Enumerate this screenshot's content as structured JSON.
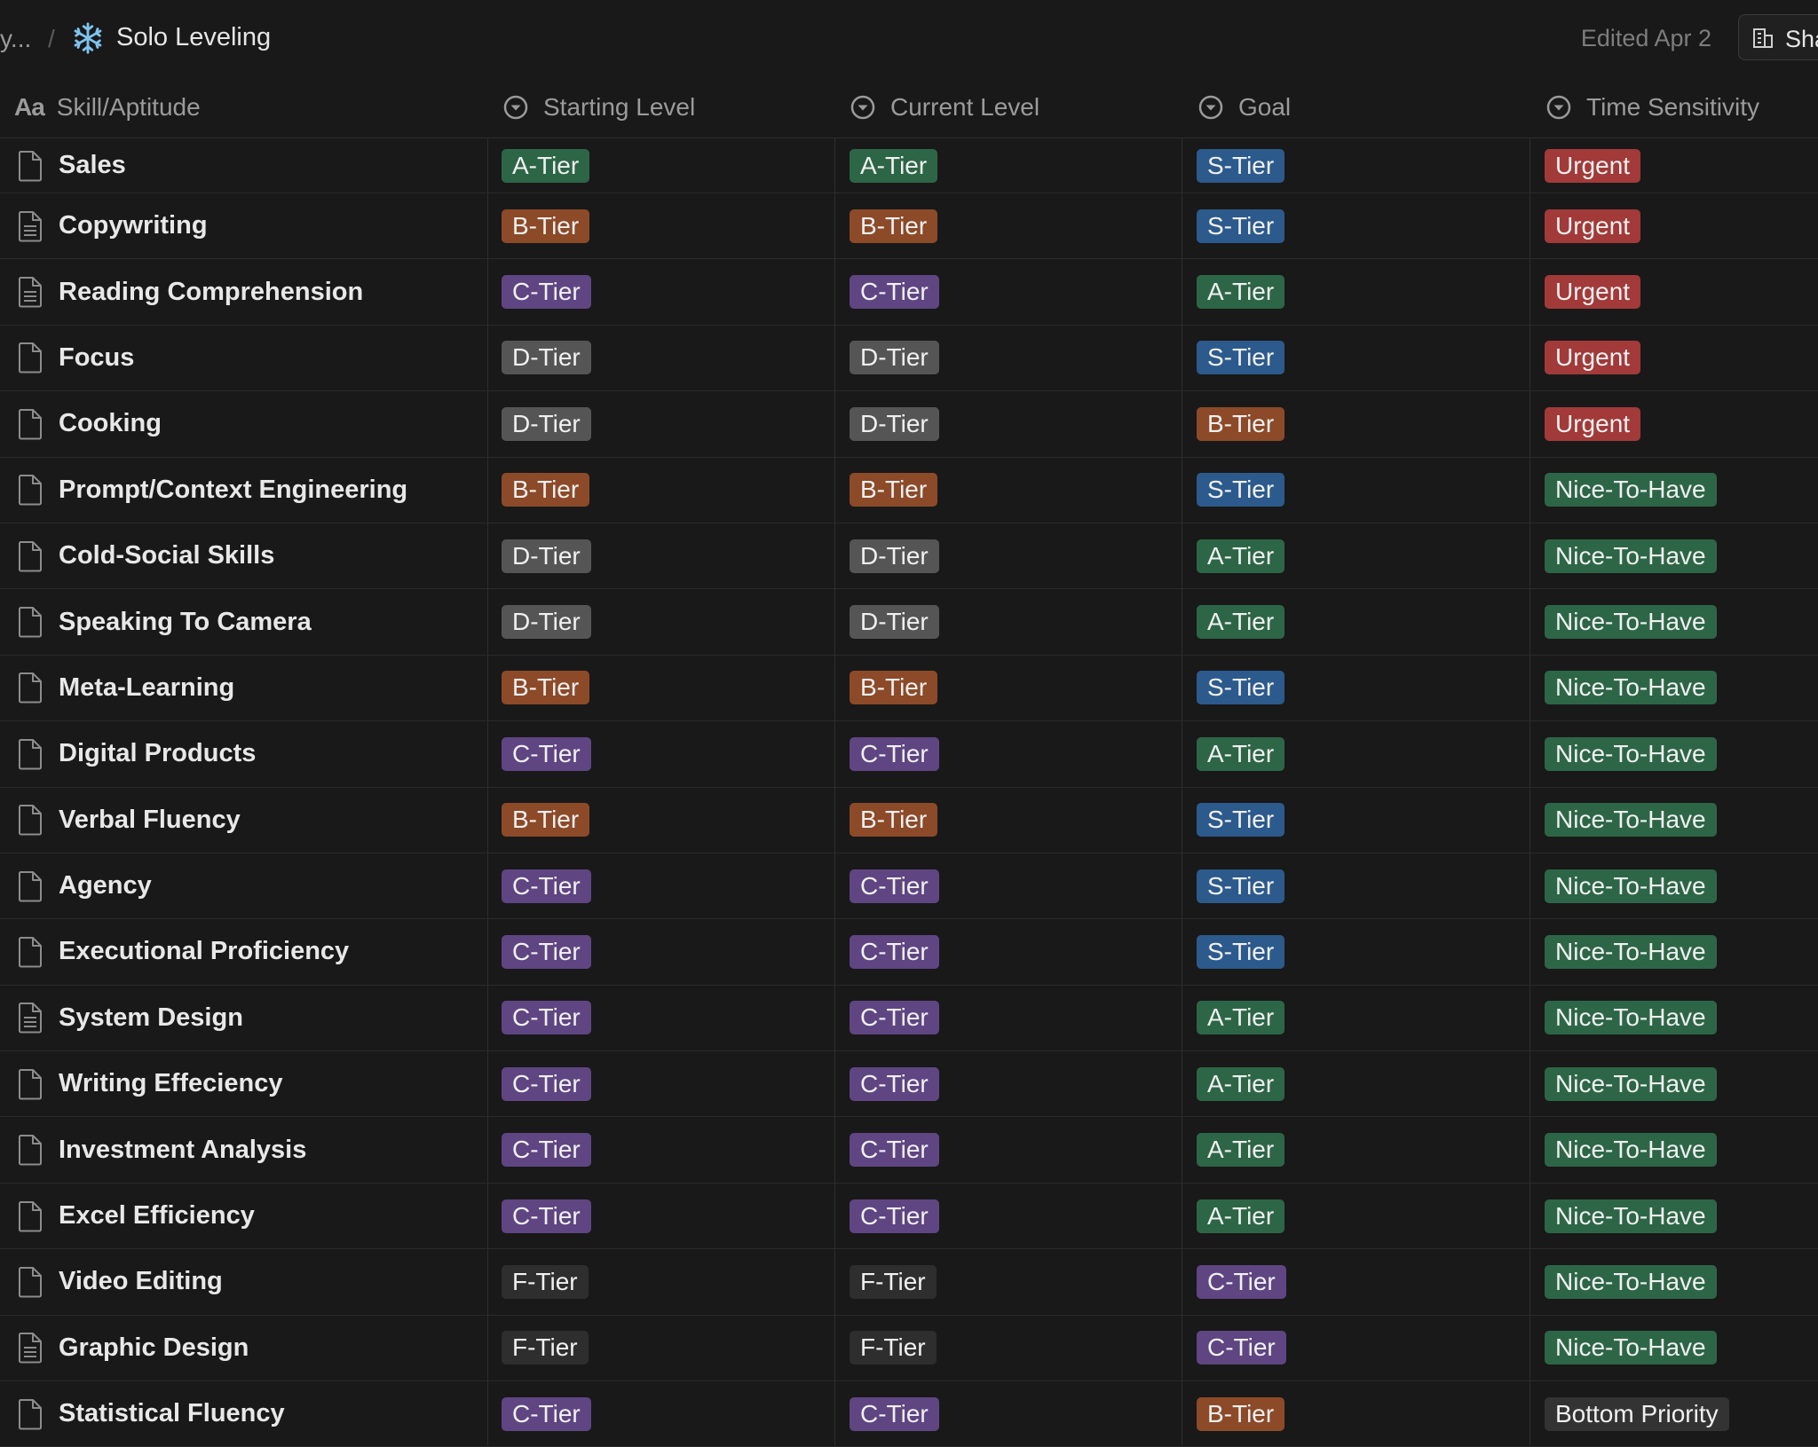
{
  "breadcrumb": {
    "truncated": "y...",
    "separator": "/",
    "page_icon": "snowflake-icon",
    "title": "Solo Leveling"
  },
  "header_bar": {
    "edited": "Edited Apr 2",
    "share_label": "Sha"
  },
  "columns": [
    {
      "label": "Skill/Aptitude",
      "icon": "Aa"
    },
    {
      "label": "Starting Level",
      "icon": "select-icon"
    },
    {
      "label": "Current Level",
      "icon": "select-icon"
    },
    {
      "label": "Goal",
      "icon": "select-icon"
    },
    {
      "label": "Time Sensitivity",
      "icon": "select-icon"
    }
  ],
  "tag_colors": {
    "A-Tier": "#2d6647",
    "B-Tier": "#8c4a28",
    "C-Tier": "#5f4582",
    "D-Tier": "#555555",
    "F-Tier": "#2e2e2e",
    "S-Tier": "#2c5a8c",
    "Urgent": "#a13a39",
    "Nice-To-Have": "#2d6647",
    "Bottom Priority": "#333333"
  },
  "rows": [
    {
      "name": "Sales",
      "icon": "page-icon",
      "start": "A-Tier",
      "current": "A-Tier",
      "goal": "S-Tier",
      "time": "Urgent"
    },
    {
      "name": "Copywriting",
      "icon": "page-text-icon",
      "start": "B-Tier",
      "current": "B-Tier",
      "goal": "S-Tier",
      "time": "Urgent"
    },
    {
      "name": "Reading Comprehension",
      "icon": "page-text-icon",
      "start": "C-Tier",
      "current": "C-Tier",
      "goal": "A-Tier",
      "time": "Urgent"
    },
    {
      "name": "Focus",
      "icon": "page-icon",
      "start": "D-Tier",
      "current": "D-Tier",
      "goal": "S-Tier",
      "time": "Urgent"
    },
    {
      "name": "Cooking",
      "icon": "page-icon",
      "start": "D-Tier",
      "current": "D-Tier",
      "goal": "B-Tier",
      "time": "Urgent"
    },
    {
      "name": "Prompt/Context Engineering",
      "icon": "page-icon",
      "start": "B-Tier",
      "current": "B-Tier",
      "goal": "S-Tier",
      "time": "Nice-To-Have"
    },
    {
      "name": "Cold-Social Skills",
      "icon": "page-icon",
      "start": "D-Tier",
      "current": "D-Tier",
      "goal": "A-Tier",
      "time": "Nice-To-Have"
    },
    {
      "name": "Speaking To Camera",
      "icon": "page-icon",
      "start": "D-Tier",
      "current": "D-Tier",
      "goal": "A-Tier",
      "time": "Nice-To-Have"
    },
    {
      "name": "Meta-Learning",
      "icon": "page-icon",
      "start": "B-Tier",
      "current": "B-Tier",
      "goal": "S-Tier",
      "time": "Nice-To-Have"
    },
    {
      "name": "Digital Products",
      "icon": "page-icon",
      "start": "C-Tier",
      "current": "C-Tier",
      "goal": "A-Tier",
      "time": "Nice-To-Have"
    },
    {
      "name": "Verbal Fluency",
      "icon": "page-icon",
      "start": "B-Tier",
      "current": "B-Tier",
      "goal": "S-Tier",
      "time": "Nice-To-Have"
    },
    {
      "name": "Agency",
      "icon": "page-icon",
      "start": "C-Tier",
      "current": "C-Tier",
      "goal": "S-Tier",
      "time": "Nice-To-Have"
    },
    {
      "name": "Executional Proficiency",
      "icon": "page-icon",
      "start": "C-Tier",
      "current": "C-Tier",
      "goal": "S-Tier",
      "time": "Nice-To-Have"
    },
    {
      "name": "System Design",
      "icon": "page-text-icon",
      "start": "C-Tier",
      "current": "C-Tier",
      "goal": "A-Tier",
      "time": "Nice-To-Have"
    },
    {
      "name": "Writing Effeciency",
      "icon": "page-icon",
      "start": "C-Tier",
      "current": "C-Tier",
      "goal": "A-Tier",
      "time": "Nice-To-Have"
    },
    {
      "name": "Investment Analysis",
      "icon": "page-icon",
      "start": "C-Tier",
      "current": "C-Tier",
      "goal": "A-Tier",
      "time": "Nice-To-Have"
    },
    {
      "name": "Excel Efficiency",
      "icon": "page-icon",
      "start": "C-Tier",
      "current": "C-Tier",
      "goal": "A-Tier",
      "time": "Nice-To-Have"
    },
    {
      "name": "Video Editing",
      "icon": "page-icon",
      "start": "F-Tier",
      "current": "F-Tier",
      "goal": "C-Tier",
      "time": "Nice-To-Have"
    },
    {
      "name": "Graphic Design",
      "icon": "page-text-icon",
      "start": "F-Tier",
      "current": "F-Tier",
      "goal": "C-Tier",
      "time": "Nice-To-Have"
    },
    {
      "name": "Statistical Fluency",
      "icon": "page-icon",
      "start": "C-Tier",
      "current": "C-Tier",
      "goal": "B-Tier",
      "time": "Bottom Priority"
    }
  ]
}
